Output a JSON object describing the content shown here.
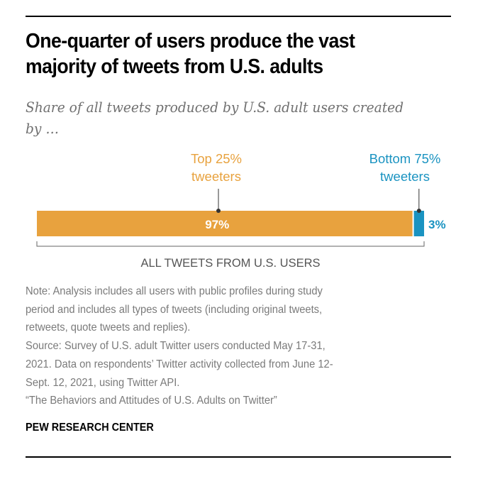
{
  "title_lines": [
    "One-quarter of users produce the vast",
    "majority of tweets from U.S. adults"
  ],
  "subtitle_lines": [
    "Share of all tweets produced by U.S. adult users created",
    "by …"
  ],
  "chart_data": {
    "type": "bar",
    "orientation": "horizontal-stacked",
    "title": "One-quarter of users produce the vast majority of tweets from U.S. adults",
    "subtitle": "Share of all tweets produced by U.S. adult users created by …",
    "categories": [
      "All tweets from U.S. users"
    ],
    "series": [
      {
        "name": "Top 25% tweeters",
        "label_lines": [
          "Top 25%",
          "tweeters"
        ],
        "values": [
          97
        ],
        "value_label": "97%",
        "color": "#e8a23e"
      },
      {
        "name": "Bottom 75% tweeters",
        "label_lines": [
          "Bottom 75%",
          "tweeters"
        ],
        "values": [
          3
        ],
        "value_label": "3%",
        "color": "#1a93c1"
      }
    ],
    "xlabel": "ALL TWEETS FROM U.S. USERS",
    "ylabel": "",
    "xlim": [
      0,
      100
    ],
    "grid": false,
    "legend": "callout-labels-above"
  },
  "notes": [
    "Note: Analysis includes all users with public profiles during study",
    "period and includes all types of tweets (including original tweets,",
    "retweets, quote tweets and replies).",
    "Source: Survey of U.S. adult Twitter users conducted May 17-31,",
    "2021. Data on respondents’ Twitter activity collected from June 12-",
    "Sept. 12, 2021, using Twitter API.",
    "“The Behaviors and Attitudes of U.S. Adults on Twitter”"
  ],
  "brand": "PEW RESEARCH CENTER",
  "colors": {
    "orange": "#e8a23e",
    "blue": "#1a93c1",
    "note_gray": "#7a7a7a",
    "axis_gray": "#555555"
  }
}
